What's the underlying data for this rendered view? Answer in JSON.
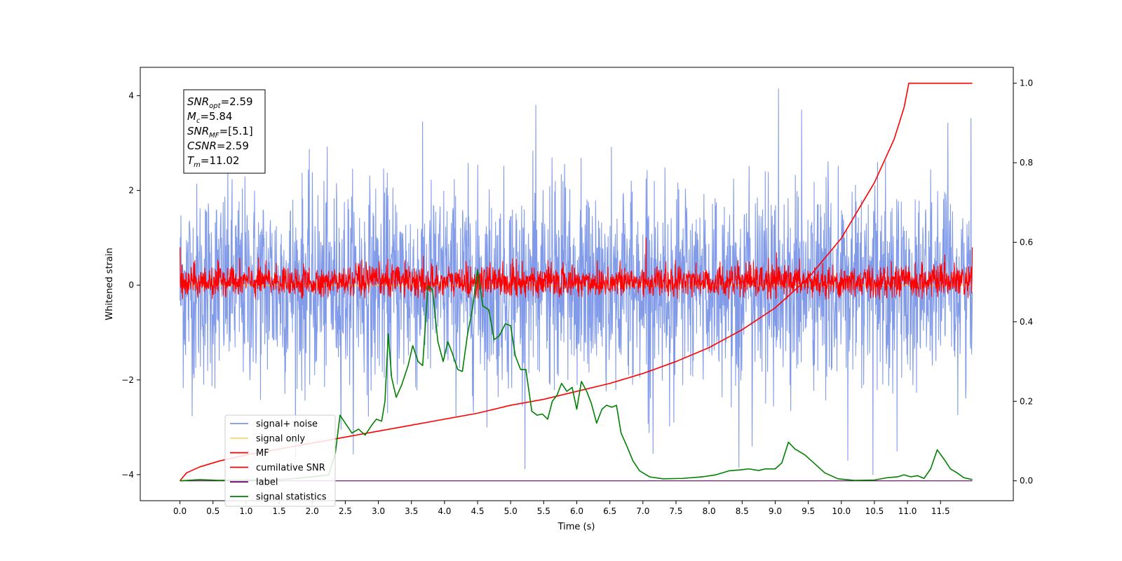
{
  "chart_data": {
    "type": "line",
    "xlabel": "Time (s)",
    "ylabel": "Whitened strain",
    "xlim": [
      -0.6,
      12.6
    ],
    "ylim": [
      -4.55,
      4.6
    ],
    "y2lim": [
      -0.05,
      1.04
    ],
    "x_ticks": [
      0.0,
      0.5,
      1.0,
      1.5,
      2.0,
      2.5,
      3.0,
      3.5,
      4.0,
      4.5,
      5.0,
      5.5,
      6.0,
      6.5,
      7.0,
      7.5,
      8.0,
      8.5,
      9.0,
      9.5,
      10.0,
      10.5,
      11.0,
      11.5
    ],
    "x_tick_labels": [
      "0.0",
      "0.5",
      "1.0",
      "1.5",
      "2.0",
      "2.5",
      "3.0",
      "3.5",
      "4.0",
      "4.5",
      "5.0",
      "5.5",
      "6.0",
      "6.5",
      "7.0",
      "7.5",
      "8.0",
      "8.5",
      "9.0",
      "9.5",
      "10.0",
      "10.5",
      "11.0",
      "11.5"
    ],
    "y_ticks": [
      -4,
      -2,
      0,
      2,
      4
    ],
    "y_tick_labels": [
      "−4",
      "−2",
      "0",
      "2",
      "4"
    ],
    "y2_ticks": [
      0.0,
      0.2,
      0.4,
      0.6,
      0.8,
      1.0
    ],
    "y2_tick_labels": [
      "0.0",
      "0.2",
      "0.4",
      "0.6",
      "0.8",
      "1.0"
    ],
    "grid": false,
    "legend_position": "lower-left",
    "annotation_box": {
      "lines": [
        {
          "sym": "SNR",
          "sub": "opt",
          "value": "=2.59"
        },
        {
          "sym": "M",
          "sub": "c",
          "value": "=5.84"
        },
        {
          "sym": "SNR",
          "sub": "MF",
          "value": "=[5.1]"
        },
        {
          "sym": "CSNR",
          "sub": "",
          "value": "=2.59"
        },
        {
          "sym": "T",
          "sub": "m",
          "value": "=11.02"
        }
      ]
    },
    "series": [
      {
        "name": "signal+ noise",
        "color": "#7b96e8",
        "axis": "left",
        "kind": "noise",
        "x_range": [
          0.0,
          11.98
        ],
        "mean": 0.0,
        "typical_range": [
          -2.0,
          2.0
        ],
        "min": -4.0,
        "max": 4.15,
        "peaks": [
          {
            "x": 9.05,
            "y": 4.15
          },
          {
            "x": 5.38,
            "y": 3.8
          },
          {
            "x": 10.48,
            "y": -4.0
          },
          {
            "x": 8.45,
            "y": -3.85
          },
          {
            "x": 10.1,
            "y": -3.7
          }
        ]
      },
      {
        "name": "signal only",
        "color": "#f5c542",
        "axis": "left",
        "kind": "line",
        "points": [
          [
            0.0,
            0.0
          ],
          [
            11.98,
            0.0
          ]
        ]
      },
      {
        "name": "MF",
        "color": "#ff0000",
        "axis": "left",
        "kind": "noise",
        "x_range": [
          0.0,
          11.98
        ],
        "mean": 0.0,
        "typical_range": [
          -0.25,
          0.4
        ],
        "min": -0.3,
        "max": 1.0,
        "peaks": [
          {
            "x": 0.0,
            "y": 0.8
          },
          {
            "x": 7.05,
            "y": 1.0
          },
          {
            "x": 11.98,
            "y": 0.8
          }
        ]
      },
      {
        "name": "cumilative SNR",
        "color": "#ff0000",
        "axis": "right",
        "kind": "line",
        "points": [
          [
            0.0,
            0.0
          ],
          [
            0.1,
            0.02
          ],
          [
            0.3,
            0.035
          ],
          [
            0.6,
            0.05
          ],
          [
            1.0,
            0.065
          ],
          [
            1.5,
            0.08
          ],
          [
            2.0,
            0.095
          ],
          [
            2.5,
            0.11
          ],
          [
            3.0,
            0.125
          ],
          [
            3.5,
            0.14
          ],
          [
            4.0,
            0.155
          ],
          [
            4.5,
            0.17
          ],
          [
            5.0,
            0.19
          ],
          [
            5.5,
            0.205
          ],
          [
            6.0,
            0.225
          ],
          [
            6.5,
            0.245
          ],
          [
            7.0,
            0.27
          ],
          [
            7.5,
            0.3
          ],
          [
            8.0,
            0.335
          ],
          [
            8.5,
            0.38
          ],
          [
            9.0,
            0.435
          ],
          [
            9.5,
            0.51
          ],
          [
            10.0,
            0.61
          ],
          [
            10.5,
            0.75
          ],
          [
            10.8,
            0.86
          ],
          [
            10.95,
            0.94
          ],
          [
            11.02,
            1.0
          ],
          [
            11.98,
            1.0
          ]
        ]
      },
      {
        "name": "label",
        "color": "#6a006a",
        "axis": "right",
        "kind": "line",
        "points": [
          [
            0.0,
            0.0
          ],
          [
            11.98,
            0.0
          ]
        ]
      },
      {
        "name": "signal statistics",
        "color": "#008000",
        "axis": "right",
        "kind": "line",
        "points": [
          [
            0.0,
            0.0
          ],
          [
            0.3,
            0.003
          ],
          [
            0.6,
            0.001
          ],
          [
            1.0,
            0.002
          ],
          [
            1.3,
            0.002
          ],
          [
            1.6,
            0.004
          ],
          [
            2.0,
            0.01
          ],
          [
            2.25,
            0.015
          ],
          [
            2.35,
            0.07
          ],
          [
            2.42,
            0.165
          ],
          [
            2.5,
            0.145
          ],
          [
            2.6,
            0.12
          ],
          [
            2.7,
            0.13
          ],
          [
            2.8,
            0.115
          ],
          [
            2.9,
            0.14
          ],
          [
            2.97,
            0.155
          ],
          [
            3.05,
            0.15
          ],
          [
            3.1,
            0.2
          ],
          [
            3.15,
            0.37
          ],
          [
            3.2,
            0.26
          ],
          [
            3.27,
            0.21
          ],
          [
            3.35,
            0.24
          ],
          [
            3.45,
            0.29
          ],
          [
            3.52,
            0.34
          ],
          [
            3.6,
            0.3
          ],
          [
            3.67,
            0.29
          ],
          [
            3.75,
            0.49
          ],
          [
            3.82,
            0.48
          ],
          [
            3.9,
            0.35
          ],
          [
            3.98,
            0.3
          ],
          [
            4.05,
            0.35
          ],
          [
            4.12,
            0.32
          ],
          [
            4.2,
            0.28
          ],
          [
            4.27,
            0.275
          ],
          [
            4.35,
            0.37
          ],
          [
            4.42,
            0.43
          ],
          [
            4.5,
            0.53
          ],
          [
            4.58,
            0.44
          ],
          [
            4.67,
            0.43
          ],
          [
            4.75,
            0.355
          ],
          [
            4.83,
            0.365
          ],
          [
            4.92,
            0.395
          ],
          [
            5.0,
            0.39
          ],
          [
            5.07,
            0.315
          ],
          [
            5.15,
            0.28
          ],
          [
            5.23,
            0.28
          ],
          [
            5.32,
            0.175
          ],
          [
            5.4,
            0.165
          ],
          [
            5.48,
            0.168
          ],
          [
            5.56,
            0.155
          ],
          [
            5.63,
            0.2
          ],
          [
            5.7,
            0.215
          ],
          [
            5.77,
            0.245
          ],
          [
            5.85,
            0.225
          ],
          [
            5.93,
            0.235
          ],
          [
            6.0,
            0.18
          ],
          [
            6.07,
            0.25
          ],
          [
            6.15,
            0.225
          ],
          [
            6.22,
            0.195
          ],
          [
            6.3,
            0.145
          ],
          [
            6.38,
            0.18
          ],
          [
            6.45,
            0.19
          ],
          [
            6.53,
            0.185
          ],
          [
            6.6,
            0.19
          ],
          [
            6.67,
            0.12
          ],
          [
            6.75,
            0.09
          ],
          [
            6.85,
            0.05
          ],
          [
            6.95,
            0.025
          ],
          [
            7.1,
            0.01
          ],
          [
            7.3,
            0.005
          ],
          [
            7.6,
            0.006
          ],
          [
            7.9,
            0.01
          ],
          [
            8.1,
            0.015
          ],
          [
            8.3,
            0.025
          ],
          [
            8.5,
            0.028
          ],
          [
            8.6,
            0.03
          ],
          [
            8.75,
            0.026
          ],
          [
            8.85,
            0.03
          ],
          [
            9.0,
            0.03
          ],
          [
            9.1,
            0.045
          ],
          [
            9.2,
            0.097
          ],
          [
            9.3,
            0.08
          ],
          [
            9.45,
            0.065
          ],
          [
            9.55,
            0.05
          ],
          [
            9.75,
            0.02
          ],
          [
            9.95,
            0.005
          ],
          [
            10.2,
            0.001
          ],
          [
            10.5,
            0.002
          ],
          [
            10.7,
            0.008
          ],
          [
            10.85,
            0.01
          ],
          [
            10.95,
            0.015
          ],
          [
            11.05,
            0.01
          ],
          [
            11.15,
            0.013
          ],
          [
            11.25,
            0.006
          ],
          [
            11.35,
            0.03
          ],
          [
            11.45,
            0.078
          ],
          [
            11.55,
            0.055
          ],
          [
            11.65,
            0.03
          ],
          [
            11.75,
            0.02
          ],
          [
            11.85,
            0.008
          ],
          [
            11.98,
            0.003
          ]
        ]
      }
    ]
  }
}
